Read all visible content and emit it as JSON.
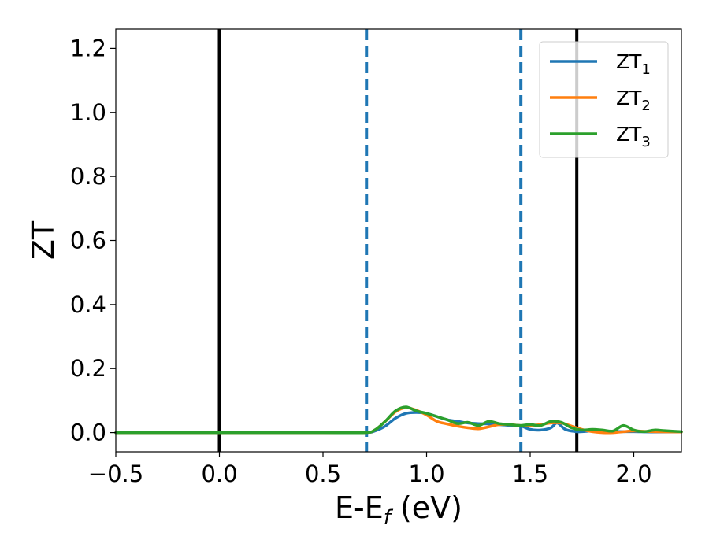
{
  "chart_data": {
    "type": "line",
    "xlabel": {
      "main": "E-E",
      "sub": "f",
      "tail": " (eV)"
    },
    "ylabel": "ZT",
    "xlim": [
      -0.5,
      2.23
    ],
    "ylim": [
      -0.06,
      1.26
    ],
    "xticks": [
      -0.5,
      0.0,
      0.5,
      1.0,
      1.5,
      2.0
    ],
    "xtick_labels": [
      "−0.5",
      "0.0",
      "0.5",
      "1.0",
      "1.5",
      "2.0"
    ],
    "yticks": [
      0.0,
      0.2,
      0.4,
      0.6,
      0.8,
      1.0,
      1.2
    ],
    "ytick_labels": [
      "0.0",
      "0.2",
      "0.4",
      "0.6",
      "0.8",
      "1.0",
      "1.2"
    ],
    "grid": false,
    "legend_position": "top-right",
    "vlines": [
      {
        "x": 0.0,
        "style": "solid",
        "color": "#000000"
      },
      {
        "x": 1.725,
        "style": "solid",
        "color": "#000000"
      },
      {
        "x": 0.71,
        "style": "dashed",
        "color": "#1f77b4"
      },
      {
        "x": 1.455,
        "style": "dashed",
        "color": "#1f77b4"
      }
    ],
    "series": [
      {
        "name": "ZT1",
        "legend_main": "ZT",
        "legend_sub": "1",
        "color": "#1f77b4",
        "x": [
          -0.5,
          0.0,
          0.5,
          0.7,
          0.75,
          0.8,
          0.85,
          0.9,
          0.95,
          1.0,
          1.05,
          1.1,
          1.15,
          1.2,
          1.25,
          1.3,
          1.35,
          1.4,
          1.45,
          1.5,
          1.55,
          1.6,
          1.63,
          1.67,
          1.72,
          1.75,
          1.8,
          1.85,
          1.9,
          1.95,
          2.0,
          2.1,
          2.23
        ],
        "y": [
          0.0,
          0.0,
          0.0,
          0.0,
          0.005,
          0.02,
          0.045,
          0.06,
          0.063,
          0.06,
          0.05,
          0.04,
          0.035,
          0.03,
          0.028,
          0.027,
          0.025,
          0.023,
          0.022,
          0.01,
          0.008,
          0.015,
          0.03,
          0.01,
          0.003,
          0.003,
          0.005,
          0.005,
          0.004,
          0.003,
          0.003,
          0.002,
          0.002
        ]
      },
      {
        "name": "ZT2",
        "legend_main": "ZT",
        "legend_sub": "2",
        "color": "#ff7f0e",
        "x": [
          -0.5,
          0.0,
          0.5,
          0.7,
          0.75,
          0.8,
          0.85,
          0.9,
          0.95,
          1.0,
          1.05,
          1.1,
          1.15,
          1.2,
          1.25,
          1.3,
          1.35,
          1.4,
          1.45,
          1.5,
          1.55,
          1.6,
          1.65,
          1.7,
          1.75,
          1.8,
          1.85,
          1.9,
          1.95,
          2.0,
          2.05,
          2.1,
          2.23
        ],
        "y": [
          0.0,
          0.0,
          0.0,
          0.0,
          0.008,
          0.035,
          0.065,
          0.078,
          0.07,
          0.055,
          0.035,
          0.027,
          0.02,
          0.015,
          0.012,
          0.018,
          0.025,
          0.025,
          0.022,
          0.022,
          0.025,
          0.03,
          0.03,
          0.02,
          0.01,
          0.003,
          0.0,
          0.0,
          0.003,
          0.005,
          0.004,
          0.003,
          0.002
        ]
      },
      {
        "name": "ZT3",
        "legend_main": "ZT",
        "legend_sub": "3",
        "color": "#2ca02c",
        "x": [
          -0.5,
          0.0,
          0.5,
          0.7,
          0.75,
          0.8,
          0.85,
          0.9,
          0.95,
          1.0,
          1.05,
          1.1,
          1.15,
          1.2,
          1.25,
          1.3,
          1.35,
          1.4,
          1.45,
          1.5,
          1.55,
          1.6,
          1.65,
          1.7,
          1.75,
          1.8,
          1.85,
          1.9,
          1.95,
          2.0,
          2.05,
          2.1,
          2.15,
          2.23
        ],
        "y": [
          0.0,
          0.0,
          0.0,
          0.0,
          0.008,
          0.035,
          0.068,
          0.08,
          0.068,
          0.06,
          0.05,
          0.04,
          0.028,
          0.032,
          0.022,
          0.035,
          0.028,
          0.025,
          0.022,
          0.025,
          0.022,
          0.035,
          0.032,
          0.015,
          0.008,
          0.01,
          0.008,
          0.005,
          0.022,
          0.008,
          0.003,
          0.008,
          0.006,
          0.003
        ]
      }
    ]
  }
}
